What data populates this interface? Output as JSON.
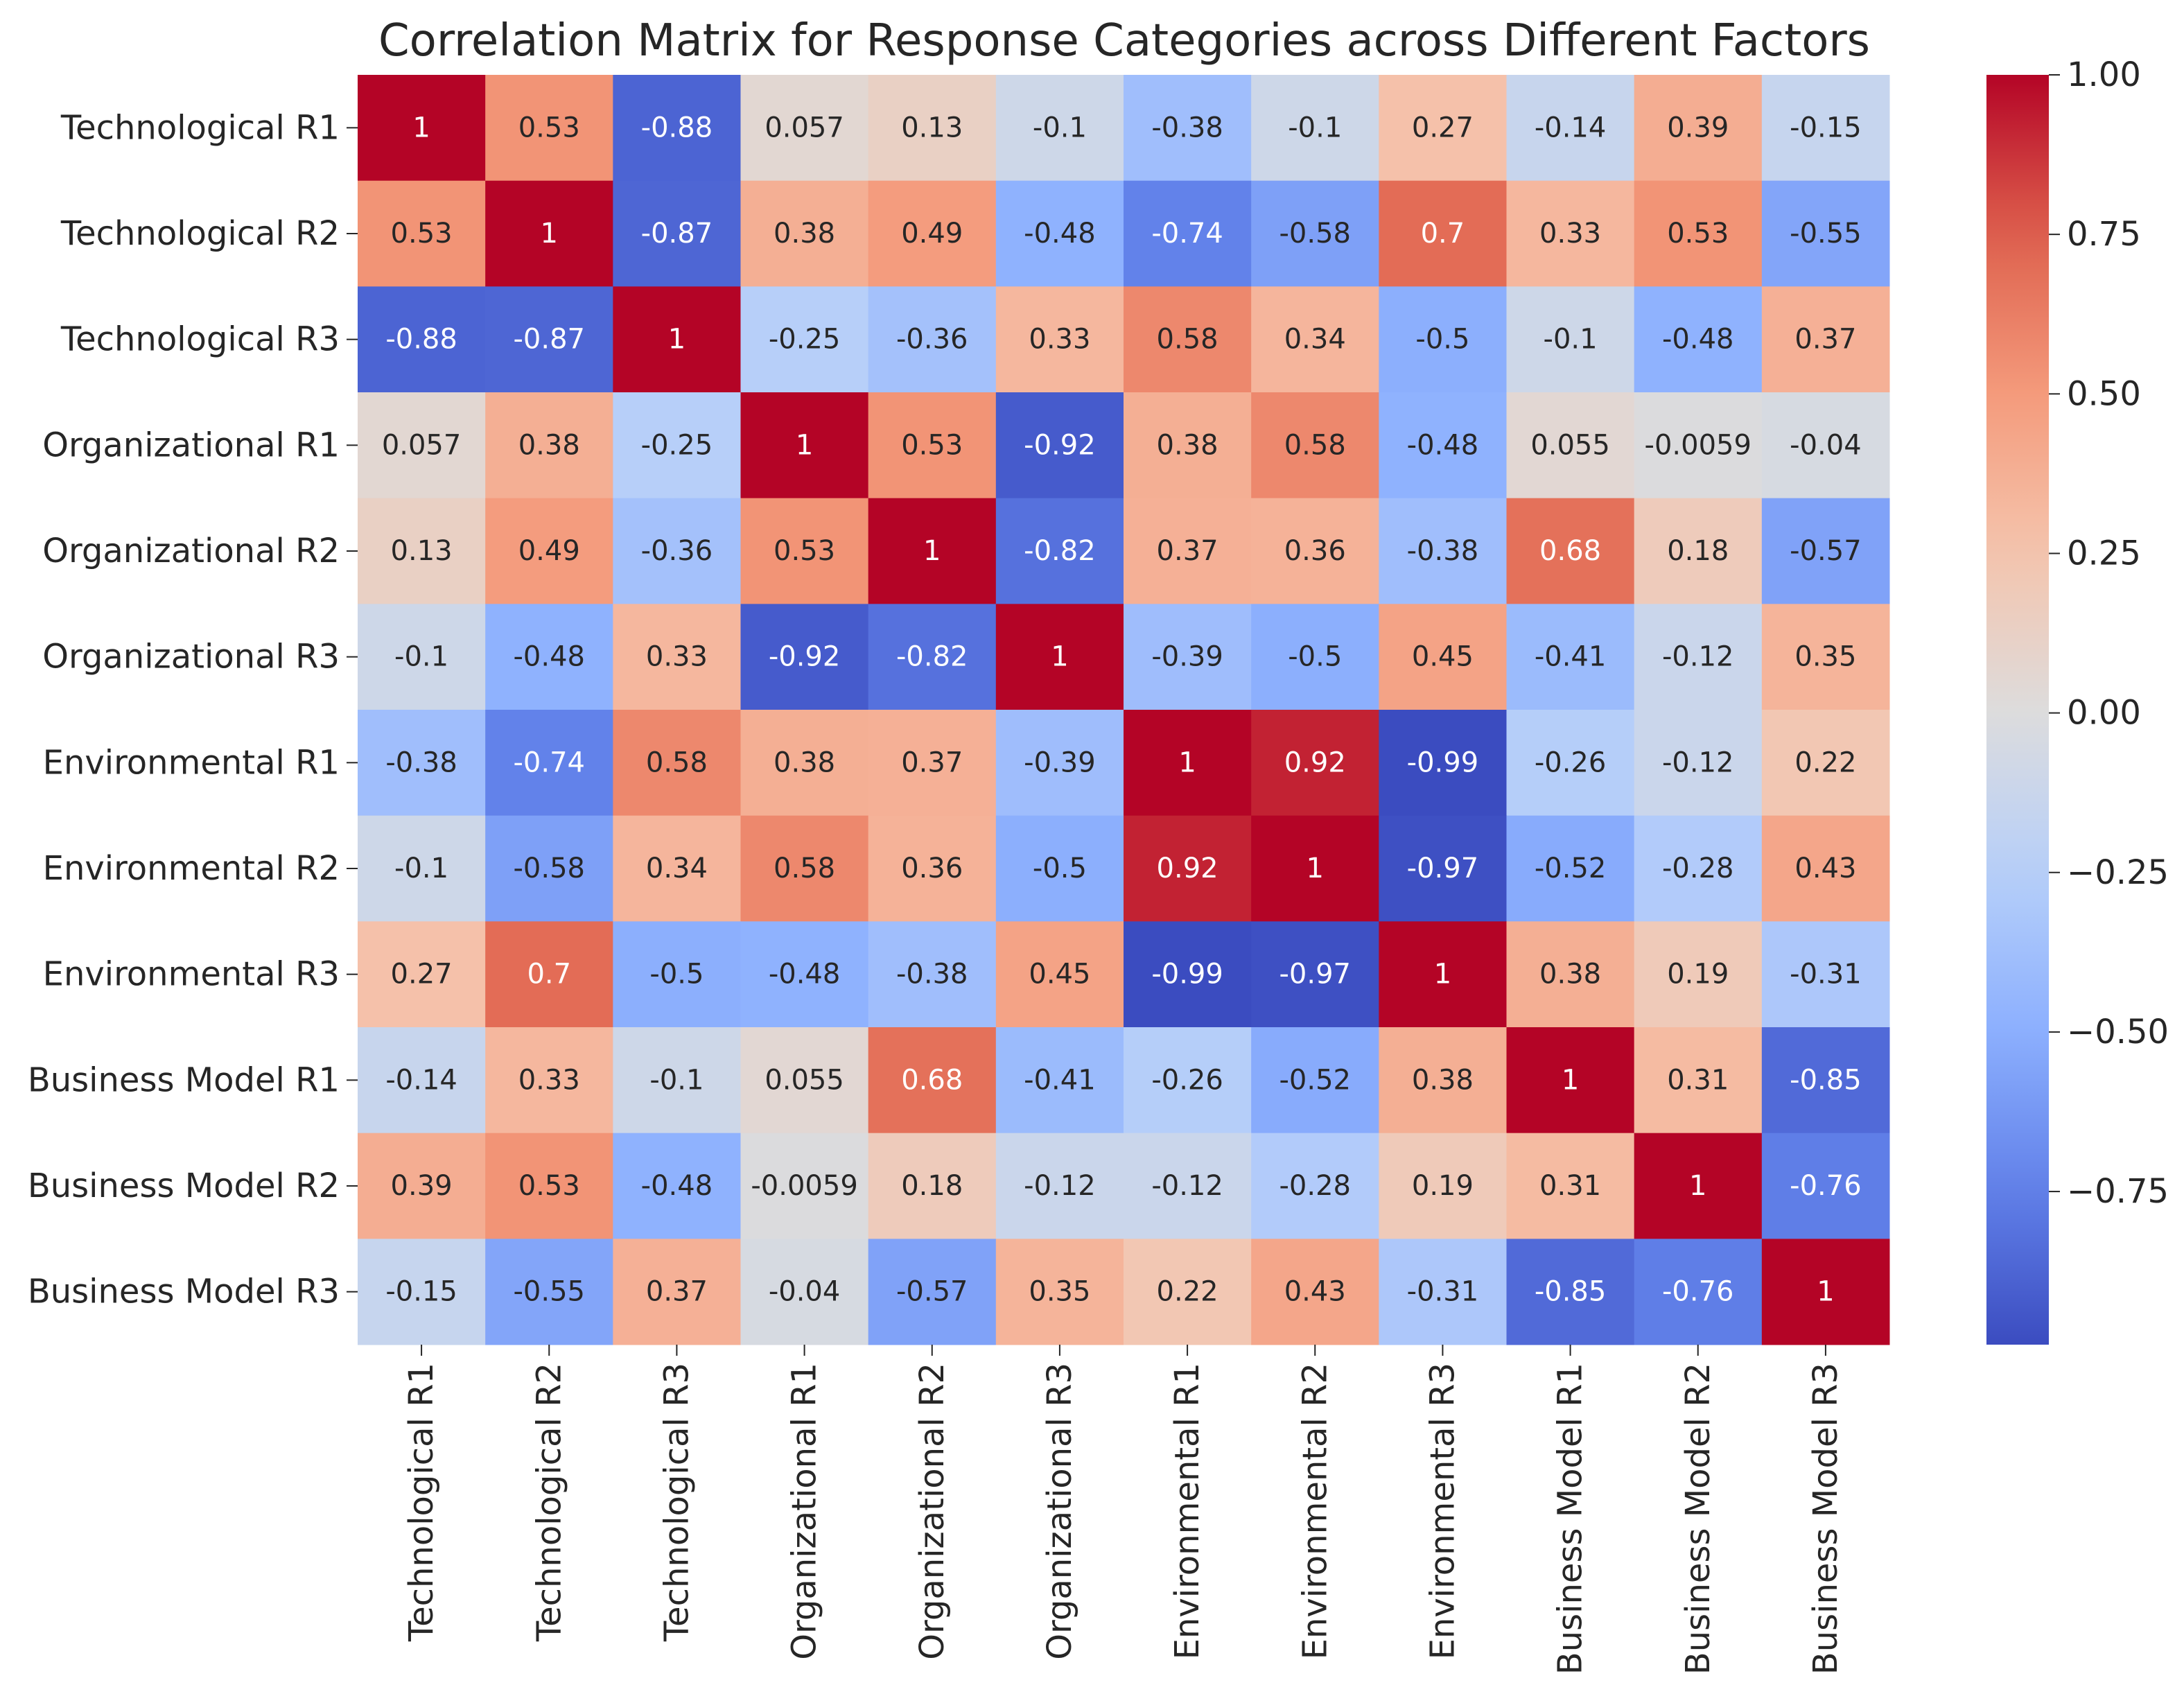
{
  "chart_data": {
    "type": "heatmap",
    "title": "Correlation Matrix for Response Categories across Different Factors",
    "xlabel": "",
    "ylabel": "",
    "categories": [
      "Technological R1",
      "Technological R2",
      "Technological R3",
      "Organizational R1",
      "Organizational R2",
      "Organizational R3",
      "Environmental R1",
      "Environmental R2",
      "Environmental R3",
      "Business Model R1",
      "Business Model R2",
      "Business Model R3"
    ],
    "labels": [
      [
        "1",
        "0.53",
        "-0.88",
        "0.057",
        "0.13",
        "-0.1",
        "-0.38",
        "-0.1",
        "0.27",
        "-0.14",
        "0.39",
        "-0.15"
      ],
      [
        "0.53",
        "1",
        "-0.87",
        "0.38",
        "0.49",
        "-0.48",
        "-0.74",
        "-0.58",
        "0.7",
        "0.33",
        "0.53",
        "-0.55"
      ],
      [
        "-0.88",
        "-0.87",
        "1",
        "-0.25",
        "-0.36",
        "0.33",
        "0.58",
        "0.34",
        "-0.5",
        "-0.1",
        "-0.48",
        "0.37"
      ],
      [
        "0.057",
        "0.38",
        "-0.25",
        "1",
        "0.53",
        "-0.92",
        "0.38",
        "0.58",
        "-0.48",
        "0.055",
        "-0.0059",
        "-0.04"
      ],
      [
        "0.13",
        "0.49",
        "-0.36",
        "0.53",
        "1",
        "-0.82",
        "0.37",
        "0.36",
        "-0.38",
        "0.68",
        "0.18",
        "-0.57"
      ],
      [
        "-0.1",
        "-0.48",
        "0.33",
        "-0.92",
        "-0.82",
        "1",
        "-0.39",
        "-0.5",
        "0.45",
        "-0.41",
        "-0.12",
        "0.35"
      ],
      [
        "-0.38",
        "-0.74",
        "0.58",
        "0.38",
        "0.37",
        "-0.39",
        "1",
        "0.92",
        "-0.99",
        "-0.26",
        "-0.12",
        "0.22"
      ],
      [
        "-0.1",
        "-0.58",
        "0.34",
        "0.58",
        "0.36",
        "-0.5",
        "0.92",
        "1",
        "-0.97",
        "-0.52",
        "-0.28",
        "0.43"
      ],
      [
        "0.27",
        "0.7",
        "-0.5",
        "-0.48",
        "-0.38",
        "0.45",
        "-0.99",
        "-0.97",
        "1",
        "0.38",
        "0.19",
        "-0.31"
      ],
      [
        "-0.14",
        "0.33",
        "-0.1",
        "0.055",
        "0.68",
        "-0.41",
        "-0.26",
        "-0.52",
        "0.38",
        "1",
        "0.31",
        "-0.85"
      ],
      [
        "0.39",
        "0.53",
        "-0.48",
        "-0.0059",
        "0.18",
        "-0.12",
        "-0.12",
        "-0.28",
        "0.19",
        "0.31",
        "1",
        "-0.76"
      ],
      [
        "-0.15",
        "-0.55",
        "0.37",
        "-0.04",
        "-0.57",
        "0.35",
        "0.22",
        "0.43",
        "-0.31",
        "-0.85",
        "-0.76",
        "1"
      ]
    ],
    "colorbar": {
      "vmin": -0.99,
      "vmax": 1.0,
      "ticks": [
        1.0,
        0.75,
        0.5,
        0.25,
        0.0,
        -0.25,
        -0.5,
        -0.75
      ],
      "tick_labels": [
        "1.00",
        "0.75",
        "0.50",
        "0.25",
        "0.00",
        "−0.25",
        "−0.50",
        "−0.75"
      ]
    },
    "colormap": "coolwarm",
    "colors": {
      "low": "#3b4cc0",
      "mid": "#dddcdc",
      "high": "#b40426",
      "text_dark": "#262626",
      "text_light": "#ffffff"
    }
  }
}
